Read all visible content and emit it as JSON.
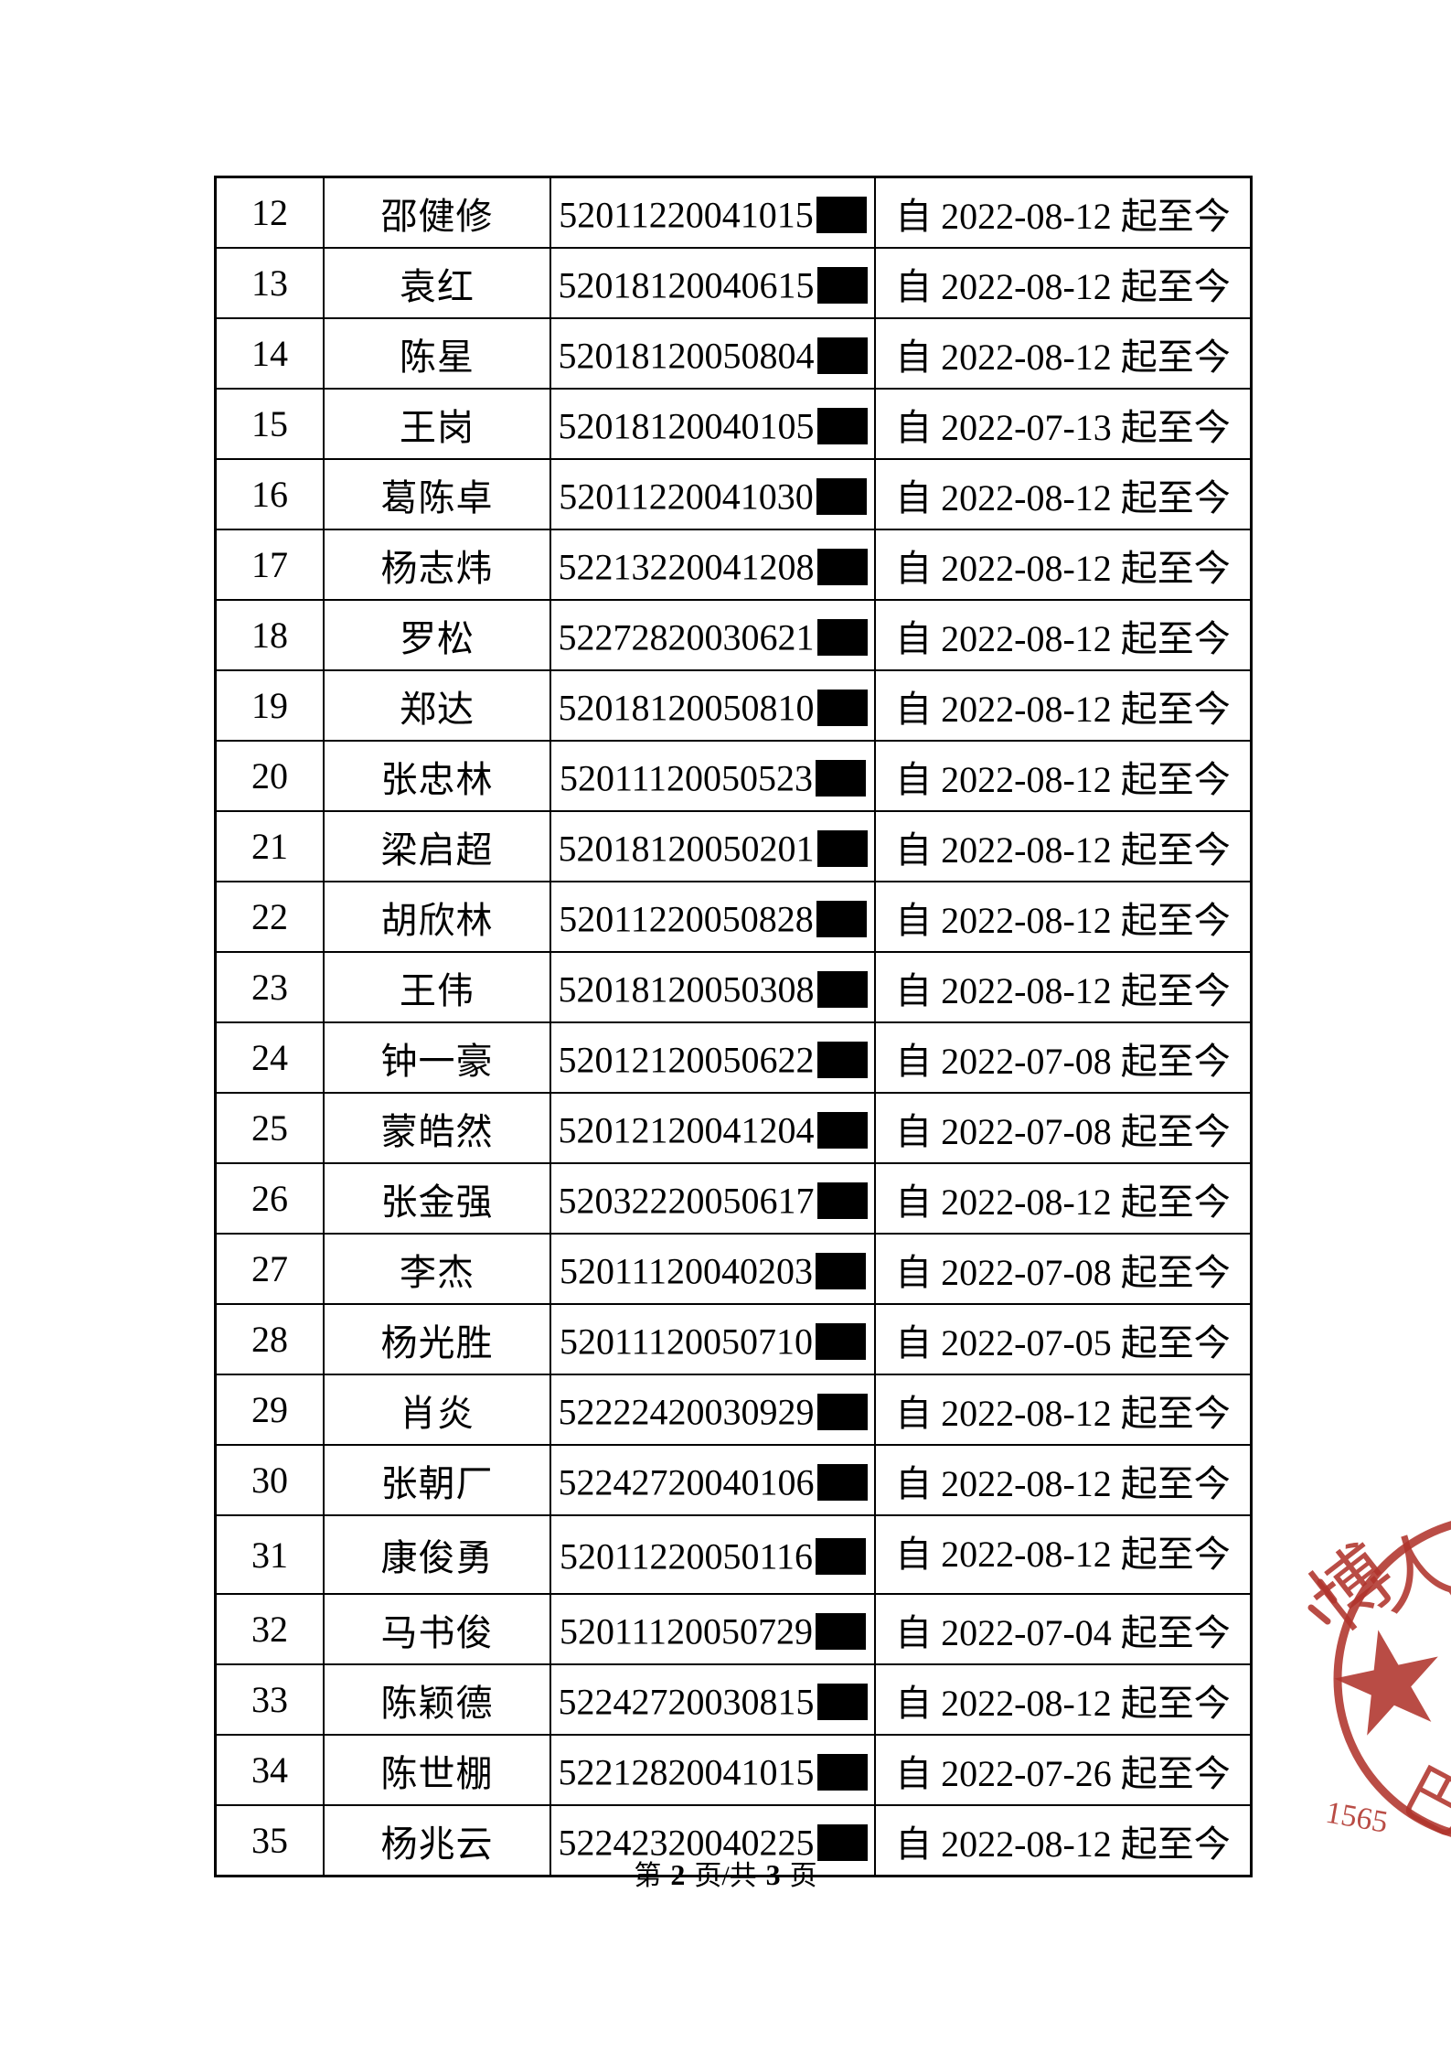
{
  "table": {
    "rows": [
      {
        "no": "12",
        "name": "邵健修",
        "id_visible": "52011220041015",
        "date": "自 2022-08-12 起至今"
      },
      {
        "no": "13",
        "name": "袁红",
        "id_visible": "52018120040615",
        "date": "自 2022-08-12 起至今"
      },
      {
        "no": "14",
        "name": "陈星",
        "id_visible": "52018120050804",
        "date": "自 2022-08-12 起至今"
      },
      {
        "no": "15",
        "name": "王岗",
        "id_visible": "52018120040105",
        "date": "自 2022-07-13 起至今"
      },
      {
        "no": "16",
        "name": "葛陈卓",
        "id_visible": "52011220041030",
        "date": "自 2022-08-12 起至今"
      },
      {
        "no": "17",
        "name": "杨志炜",
        "id_visible": "52213220041208",
        "date": "自 2022-08-12 起至今"
      },
      {
        "no": "18",
        "name": "罗松",
        "id_visible": "52272820030621",
        "date": "自 2022-08-12 起至今"
      },
      {
        "no": "19",
        "name": "郑达",
        "id_visible": "52018120050810",
        "date": "自 2022-08-12 起至今"
      },
      {
        "no": "20",
        "name": "张忠林",
        "id_visible": "52011120050523",
        "date": "自 2022-08-12 起至今"
      },
      {
        "no": "21",
        "name": "梁启超",
        "id_visible": "52018120050201",
        "date": "自 2022-08-12 起至今"
      },
      {
        "no": "22",
        "name": "胡欣林",
        "id_visible": "52011220050828",
        "date": "自 2022-08-12 起至今"
      },
      {
        "no": "23",
        "name": "王伟",
        "id_visible": "52018120050308",
        "date": "自 2022-08-12 起至今"
      },
      {
        "no": "24",
        "name": "钟一豪",
        "id_visible": "52012120050622",
        "date": "自 2022-07-08 起至今"
      },
      {
        "no": "25",
        "name": "蒙皓然",
        "id_visible": "52012120041204",
        "date": "自 2022-07-08 起至今"
      },
      {
        "no": "26",
        "name": "张金强",
        "id_visible": "52032220050617",
        "date": "自 2022-08-12 起至今"
      },
      {
        "no": "27",
        "name": "李杰",
        "id_visible": "52011120040203",
        "date": "自 2022-07-08 起至今"
      },
      {
        "no": "28",
        "name": "杨光胜",
        "id_visible": "52011120050710",
        "date": "自 2022-07-05 起至今"
      },
      {
        "no": "29",
        "name": "肖炎",
        "id_visible": "52222420030929",
        "date": "自 2022-08-12 起至今"
      },
      {
        "no": "30",
        "name": "张朝厂",
        "id_visible": "52242720040106",
        "date": "自 2022-08-12 起至今"
      },
      {
        "no": "31",
        "name": "康俊勇",
        "id_visible": "52011220050116",
        "date": "自 2022-08-12 起至今",
        "date_align": "top"
      },
      {
        "no": "32",
        "name": "马书俊",
        "id_visible": "52011120050729",
        "date": "自 2022-07-04 起至今"
      },
      {
        "no": "33",
        "name": "陈颖德",
        "id_visible": "52242720030815",
        "date": "自 2022-08-12 起至今"
      },
      {
        "no": "34",
        "name": "陈世棚",
        "id_visible": "52212820041015",
        "date": "自 2022-07-26 起至今"
      },
      {
        "no": "35",
        "name": "杨兆云",
        "id_visible": "52242320040225",
        "date": "自 2022-08-12 起至今"
      }
    ]
  },
  "footer": {
    "prefix": "第",
    "current_page": "2",
    "middle": "页/共",
    "total_pages": "3",
    "suffix": "页"
  },
  "stamp": {
    "color": "#b0342c",
    "arc_text_char_1": "博",
    "arc_text_char_2": "人",
    "arc_partial_right": "才",
    "bottom_number": "1565",
    "bottom_text": "巴"
  }
}
